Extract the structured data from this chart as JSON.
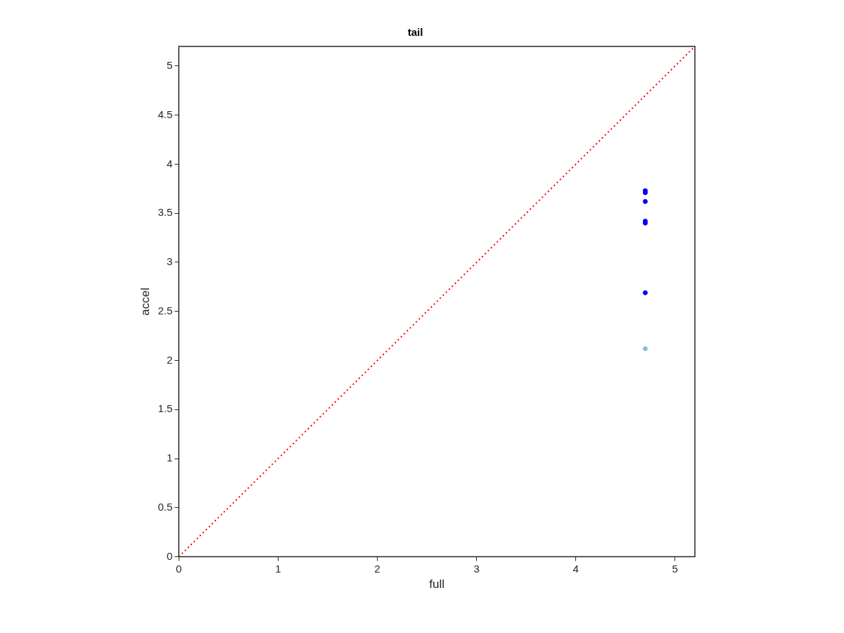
{
  "chart_data": {
    "type": "scatter",
    "title": "tail",
    "xlabel": "full",
    "ylabel": "accel",
    "xlim": [
      0,
      5.2
    ],
    "ylim": [
      0,
      5.2
    ],
    "xticks": [
      0,
      1,
      2,
      3,
      4,
      5
    ],
    "yticks": [
      0,
      0.5,
      1,
      1.5,
      2,
      2.5,
      3,
      3.5,
      4,
      4.5,
      5
    ],
    "grid": false,
    "legend": false,
    "marker": "circle",
    "series": [
      {
        "type": "line",
        "color": "#ff0000",
        "line_style": "dotted",
        "marker": "none",
        "x": [
          0,
          5.2
        ],
        "values": [
          0,
          5.2
        ]
      },
      {
        "color": "#0000ff",
        "x": [
          4.7,
          4.7,
          4.7,
          4.7,
          4.7,
          4.7
        ],
        "values": [
          3.73,
          3.71,
          3.62,
          3.42,
          3.4,
          2.69
        ]
      },
      {
        "color": "#7fbfe0",
        "x": [
          4.7
        ],
        "values": [
          2.12
        ]
      }
    ]
  }
}
